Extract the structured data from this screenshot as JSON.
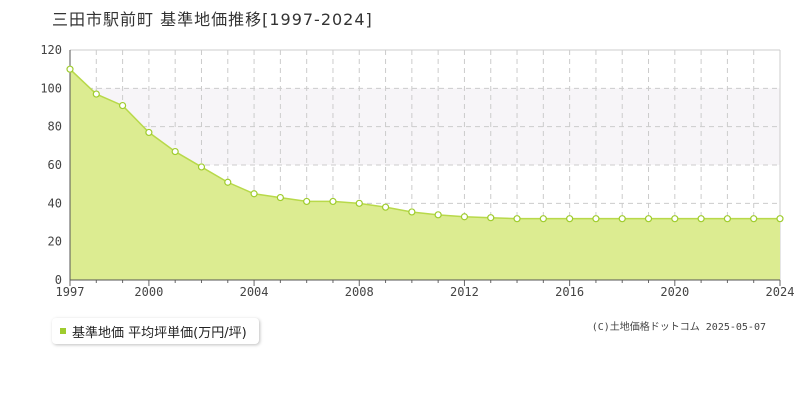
{
  "title": "三田市駅前町 基準地価推移[1997-2024]",
  "legend": {
    "label": "基準地価 平均坪単価(万円/坪)"
  },
  "copyright": "(C)土地価格ドットコム 2025-05-07",
  "colors": {
    "area_fill": "#dcec91",
    "line": "#b8d94a",
    "marker_fill": "#ffffff",
    "marker_stroke": "#9fcc2e",
    "grid": "#cccccc",
    "band": "#f7f5f8",
    "legend_swatch": "#9fcc2e"
  },
  "chart_data": {
    "type": "area",
    "title": "三田市駅前町 基準地価推移[1997-2024]",
    "xlabel": "",
    "ylabel": "",
    "xlim": [
      1997,
      2024
    ],
    "ylim": [
      0,
      120
    ],
    "x_ticks": [
      "1997",
      "2000",
      "2004",
      "2008",
      "2012",
      "2016",
      "2020",
      "2024"
    ],
    "y_ticks": [
      "0",
      "20",
      "40",
      "60",
      "80",
      "100",
      "120"
    ],
    "grid": true,
    "legend_position": "bottom-left",
    "series": [
      {
        "name": "基準地価 平均坪単価(万円/坪)",
        "x": [
          1997,
          1998,
          1999,
          2000,
          2001,
          2002,
          2003,
          2004,
          2005,
          2006,
          2007,
          2008,
          2009,
          2010,
          2011,
          2012,
          2013,
          2014,
          2015,
          2016,
          2017,
          2018,
          2019,
          2020,
          2021,
          2022,
          2023,
          2024
        ],
        "values": [
          110,
          97,
          91,
          77,
          67,
          59,
          51,
          45,
          43,
          41,
          41,
          40,
          38,
          35.5,
          34,
          33,
          32.5,
          32,
          32,
          32,
          32,
          32,
          32,
          32,
          32,
          32,
          32,
          32
        ]
      }
    ]
  }
}
